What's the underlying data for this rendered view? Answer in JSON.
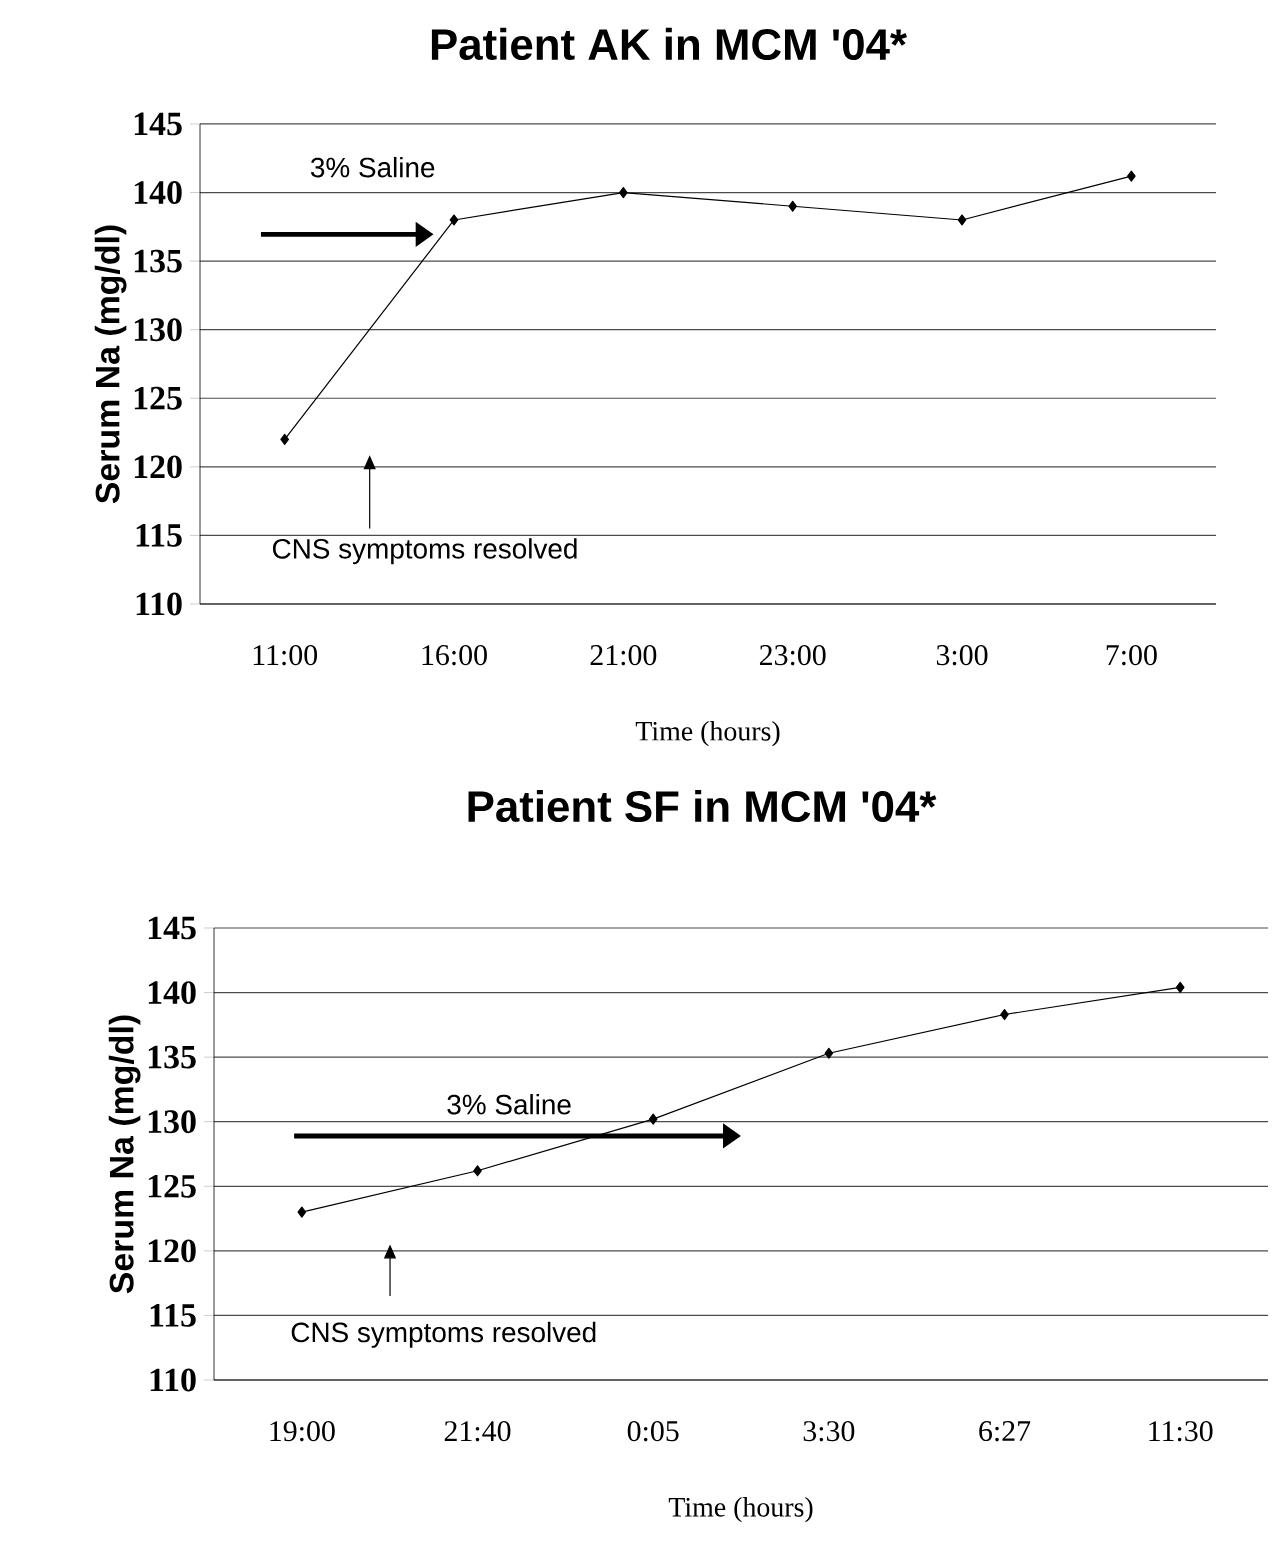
{
  "chart_data": [
    {
      "type": "line",
      "title": "Patient AK in MCM '04*",
      "xlabel": "Time (hours)",
      "ylabel": "Serum Na (mg/dl)",
      "categories": [
        "11:00",
        "16:00",
        "21:00",
        "23:00",
        "3:00",
        "7:00"
      ],
      "series": [
        {
          "color": "#000000",
          "values": [
            122,
            138,
            140,
            139,
            138,
            141.2
          ]
        }
      ],
      "ylim": [
        110,
        145
      ],
      "yticks": [
        110,
        115,
        120,
        125,
        130,
        135,
        140,
        145
      ],
      "grid": "y",
      "marker": "diamond",
      "line_style": "solid",
      "annotations": [
        "3% Saline",
        "CNS symptoms resolved"
      ]
    },
    {
      "type": "line",
      "title": "Patient SF in MCM '04*",
      "xlabel": "Time (hours)",
      "ylabel": "Serum Na (mg/dl)",
      "categories": [
        "19:00",
        "21:40",
        "0:05",
        "3:30",
        "6:27",
        "11:30"
      ],
      "series": [
        {
          "color": "#000000",
          "values": [
            123,
            126.2,
            130.2,
            135.3,
            138.3,
            140.4
          ]
        }
      ],
      "ylim": [
        110,
        145
      ],
      "yticks": [
        110,
        115,
        120,
        125,
        130,
        135,
        140,
        145
      ],
      "grid": "y",
      "marker": "diamond",
      "line_style": "solid",
      "annotations": [
        "3% Saline",
        "CNS symptoms resolved"
      ]
    }
  ]
}
